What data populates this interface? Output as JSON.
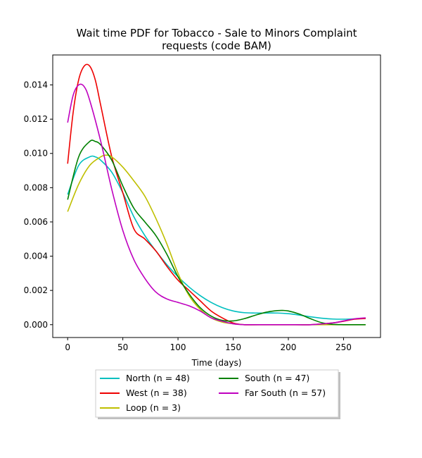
{
  "chart_data": {
    "type": "line",
    "title_line1": "Wait time PDF for Tobacco - Sale to Minors Complaint",
    "title_line2": "requests (code BAM)",
    "xlabel": "Time (days)",
    "ylabel": "",
    "xlim": [
      -13.5,
      283.5
    ],
    "ylim": [
      -0.00075,
      0.01575
    ],
    "xticks": [
      0,
      50,
      100,
      150,
      200,
      250
    ],
    "yticks": [
      0.0,
      0.002,
      0.004,
      0.006,
      0.008,
      0.01,
      0.012,
      0.014
    ],
    "ytick_labels": [
      "0.000",
      "0.002",
      "0.004",
      "0.006",
      "0.008",
      "0.010",
      "0.012",
      "0.014"
    ],
    "grid": false,
    "legend_placement": "bottom-center, below axes",
    "series": [
      {
        "name": "North (n = 48)",
        "color": "#00bfbf",
        "x": [
          0,
          10,
          20,
          25,
          30,
          40,
          50,
          60,
          70,
          80,
          90,
          100,
          110,
          120,
          130,
          140,
          150,
          160,
          170,
          180,
          190,
          200,
          210,
          220,
          230,
          240,
          250,
          260,
          270
        ],
        "y": [
          0.0076,
          0.0093,
          0.0098,
          0.0098,
          0.0096,
          0.0089,
          0.0077,
          0.0063,
          0.0052,
          0.0043,
          0.0035,
          0.0028,
          0.0022,
          0.0017,
          0.0013,
          0.001,
          0.0008,
          0.0007,
          0.00068,
          0.00068,
          0.00068,
          0.00064,
          0.00056,
          0.00046,
          0.00038,
          0.00033,
          0.00032,
          0.00034,
          0.00038
        ]
      },
      {
        "name": "West (n = 38)",
        "color": "#ee0000",
        "x": [
          0,
          5,
          10,
          15,
          20,
          25,
          30,
          40,
          50,
          60,
          70,
          80,
          90,
          100,
          110,
          120,
          130,
          140,
          150,
          160,
          180,
          200,
          220,
          240,
          250,
          260,
          270
        ],
        "y": [
          0.0094,
          0.0124,
          0.0143,
          0.0151,
          0.0151,
          0.0143,
          0.0128,
          0.0098,
          0.0077,
          0.0056,
          0.005,
          0.0043,
          0.0034,
          0.0026,
          0.002,
          0.0014,
          0.0008,
          0.0004,
          0.0001,
          0.0,
          0.0,
          0.0,
          0.0,
          0.0001,
          0.0002,
          0.00032,
          0.00036
        ]
      },
      {
        "name": "Loop (n = 3)",
        "color": "#bfbf00",
        "x": [
          0,
          10,
          20,
          30,
          35,
          40,
          50,
          60,
          70,
          80,
          90,
          100,
          110,
          120,
          130,
          140,
          150,
          160,
          180,
          200,
          220,
          240,
          260,
          270
        ],
        "y": [
          0.0066,
          0.0082,
          0.0093,
          0.0098,
          0.0099,
          0.0098,
          0.0092,
          0.0084,
          0.0075,
          0.0062,
          0.0047,
          0.003,
          0.0017,
          0.0009,
          0.0004,
          0.00015,
          5e-05,
          0.0,
          0.0,
          0.0,
          0.0,
          0.0,
          0.0,
          0.0
        ]
      },
      {
        "name": "South (n = 47)",
        "color": "#008000",
        "x": [
          0,
          10,
          20,
          25,
          30,
          40,
          50,
          60,
          70,
          80,
          90,
          100,
          110,
          120,
          130,
          140,
          150,
          160,
          170,
          180,
          190,
          195,
          200,
          210,
          220,
          230,
          240,
          250,
          260,
          270
        ],
        "y": [
          0.0073,
          0.0098,
          0.0107,
          0.0107,
          0.0105,
          0.0096,
          0.0081,
          0.0068,
          0.006,
          0.0052,
          0.0041,
          0.0028,
          0.0018,
          0.001,
          0.0005,
          0.00025,
          0.00022,
          0.00035,
          0.00055,
          0.00073,
          0.00082,
          0.00083,
          0.0008,
          0.00062,
          0.00035,
          0.00012,
          2e-05,
          0.0,
          0.0,
          0.0
        ]
      },
      {
        "name": "Far South (n = 57)",
        "color": "#bf00bf",
        "x": [
          0,
          5,
          10,
          15,
          20,
          30,
          40,
          50,
          60,
          70,
          80,
          90,
          100,
          110,
          120,
          130,
          140,
          150,
          160,
          180,
          200,
          220,
          240,
          250,
          260,
          270
        ],
        "y": [
          0.0118,
          0.0134,
          0.014,
          0.0139,
          0.0131,
          0.0107,
          0.0079,
          0.0055,
          0.0038,
          0.0027,
          0.0019,
          0.0015,
          0.0013,
          0.0011,
          0.0008,
          0.0004,
          0.0002,
          5e-05,
          0.0,
          0.0,
          0.0,
          0.0,
          0.0001,
          0.00022,
          0.00034,
          0.0004
        ]
      }
    ]
  },
  "legend": {
    "items": [
      "North (n = 48)",
      "South (n = 47)",
      "West (n = 38)",
      "Far South (n = 57)",
      "Loop (n = 3)"
    ],
    "colors": [
      "#00bfbf",
      "#008000",
      "#ee0000",
      "#bf00bf",
      "#bfbf00"
    ]
  }
}
